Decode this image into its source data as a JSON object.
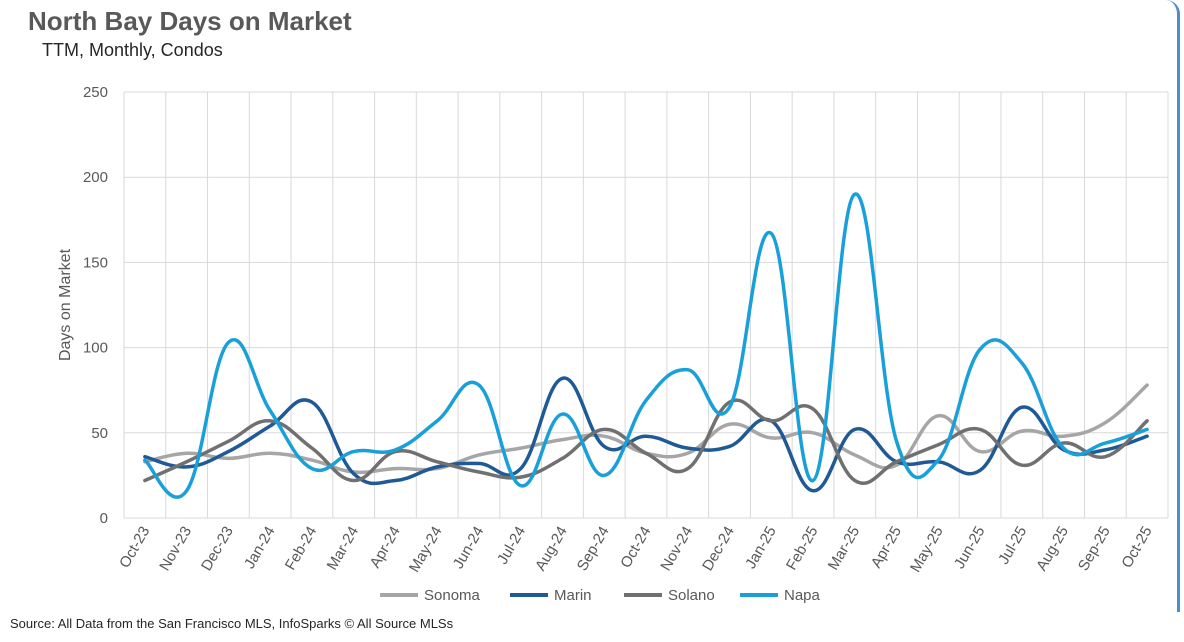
{
  "header": {
    "title": "North Bay Days on Market",
    "subtitle": "TTM, Monthly, Condos"
  },
  "footer": {
    "source": "Source: All Data from the San Francisco MLS, InfoSparks © All Source MLSs"
  },
  "chart_data": {
    "type": "line",
    "title": "North Bay Days on Market",
    "subtitle": "TTM, Monthly, Condos",
    "xlabel": "",
    "ylabel": "Days on Market",
    "ylim": [
      0,
      250
    ],
    "yticks": [
      0,
      50,
      100,
      150,
      200,
      250
    ],
    "grid": true,
    "legend_position": "bottom",
    "categories": [
      "Oct-23",
      "Nov-23",
      "Dec-23",
      "Jan-24",
      "Feb-24",
      "Mar-24",
      "Apr-24",
      "May-24",
      "Jun-24",
      "Jul-24",
      "Aug-24",
      "Sep-24",
      "Oct-24",
      "Nov-24",
      "Dec-24",
      "Jan-25",
      "Feb-25",
      "Mar-25",
      "Apr-25",
      "May-25",
      "Jun-25",
      "Jul-25",
      "Aug-25",
      "Sep-25",
      "Oct-25"
    ],
    "series": [
      {
        "name": "Sonoma",
        "color": "#a6a6a6",
        "values": [
          33,
          38,
          35,
          38,
          34,
          27,
          29,
          29,
          37,
          41,
          46,
          48,
          38,
          38,
          55,
          47,
          50,
          37,
          31,
          60,
          39,
          51,
          48,
          56,
          78
        ]
      },
      {
        "name": "Marin",
        "color": "#1f5a96",
        "values": [
          36,
          30,
          39,
          54,
          68,
          26,
          22,
          30,
          32,
          29,
          82,
          42,
          48,
          41,
          42,
          57,
          16,
          52,
          33,
          33,
          28,
          65,
          40,
          40,
          48
        ]
      },
      {
        "name": "Solano",
        "color": "#707070",
        "values": [
          22,
          33,
          45,
          57,
          41,
          22,
          39,
          33,
          27,
          24,
          35,
          52,
          38,
          29,
          68,
          57,
          64,
          22,
          33,
          43,
          52,
          31,
          44,
          36,
          57
        ]
      },
      {
        "name": "Napa",
        "color": "#1aa0d9",
        "values": [
          34,
          16,
          103,
          63,
          29,
          39,
          40,
          57,
          78,
          19,
          61,
          25,
          69,
          87,
          65,
          167,
          22,
          190,
          45,
          34,
          99,
          91,
          41,
          44,
          52
        ]
      }
    ]
  }
}
